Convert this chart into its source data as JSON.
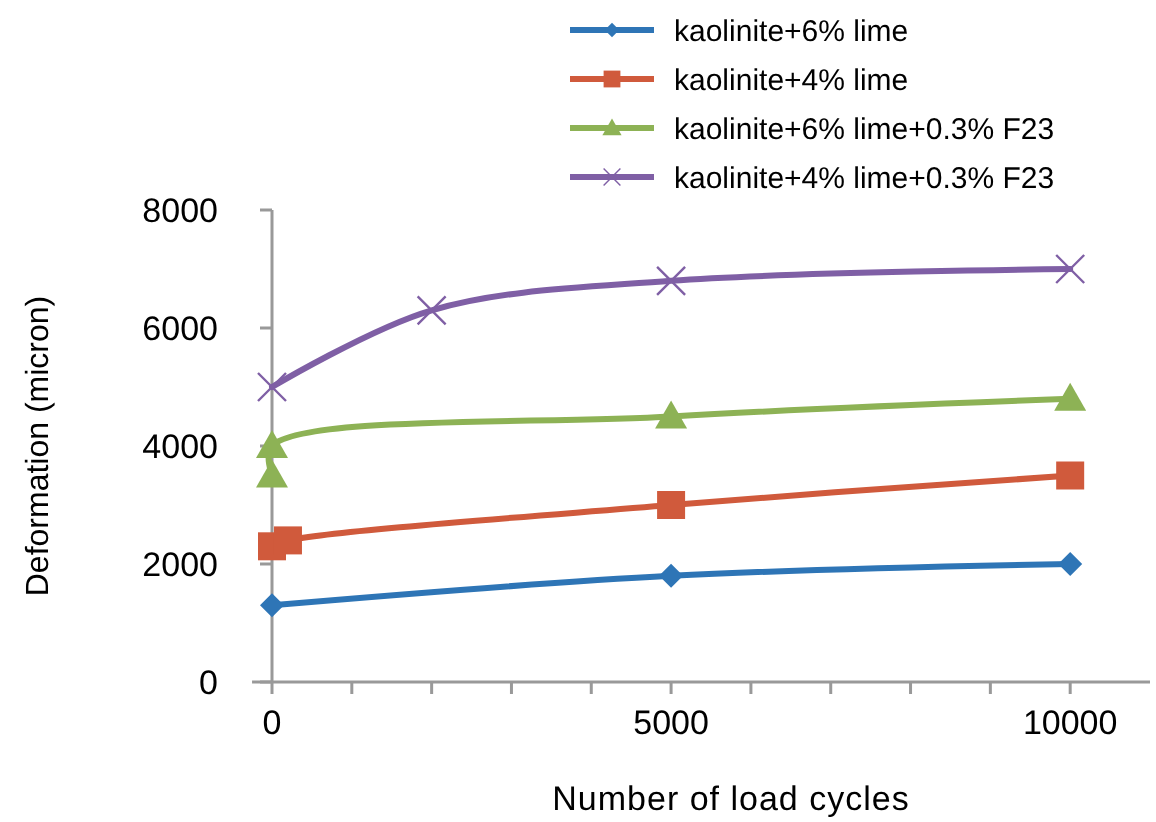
{
  "chart_data": {
    "type": "line",
    "xlabel": "Number of load cycles",
    "ylabel": "Deformation (micron)",
    "xlim": [
      -250,
      11000
    ],
    "ylim": [
      0,
      8000
    ],
    "xticks": [
      0,
      {
        "value": 1000,
        "label": null
      },
      {
        "value": 2000,
        "label": null
      },
      {
        "value": 3000,
        "label": null
      },
      {
        "value": 4000,
        "label": null
      },
      5000,
      {
        "value": 6000,
        "label": null
      },
      {
        "value": 7000,
        "label": null
      },
      {
        "value": 8000,
        "label": null
      },
      {
        "value": 9000,
        "label": null
      },
      10000
    ],
    "yticks": [
      0,
      2000,
      4000,
      6000,
      8000
    ],
    "grid": false,
    "legend": "top right",
    "series": [
      {
        "name": "kaolinite+6% lime",
        "color": "#2e75b6",
        "marker": "diamond",
        "x": [
          0,
          5000,
          10000
        ],
        "values": [
          1300,
          1800,
          2000
        ]
      },
      {
        "name": "kaolinite+4% lime",
        "color": "#d05a3c",
        "marker": "square",
        "x": [
          0,
          200,
          5000,
          10000
        ],
        "values": [
          2300,
          2400,
          3000,
          3500
        ]
      },
      {
        "name": "kaolinite+6% lime+0.3% F23",
        "color": "#8db255",
        "marker": "triangle",
        "x": [
          0,
          0,
          5000,
          10000
        ],
        "values": [
          3500,
          4000,
          4500,
          4800
        ]
      },
      {
        "name": "kaolinite+4% lime+0.3% F23",
        "color": "#7f5fa5",
        "marker": "cross",
        "x": [
          0,
          2000,
          5000,
          10000
        ],
        "values": [
          5000,
          6300,
          6800,
          7000
        ]
      }
    ]
  }
}
